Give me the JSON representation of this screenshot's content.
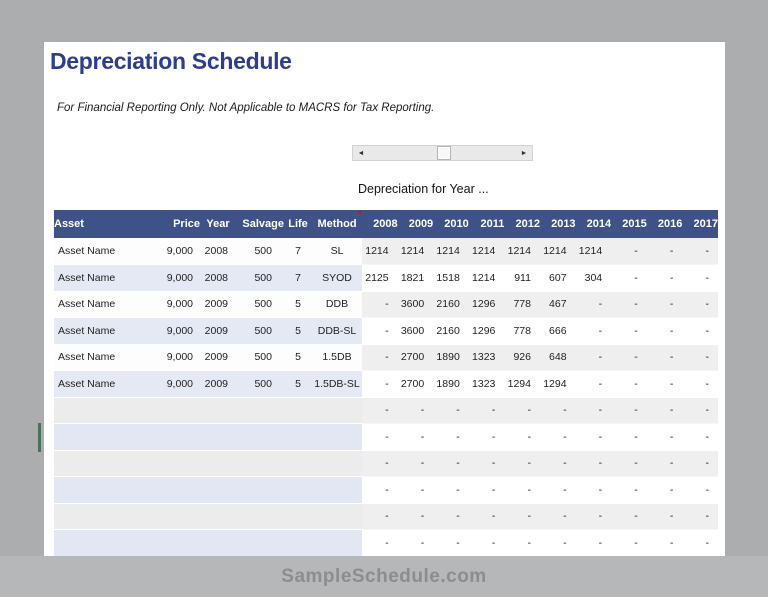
{
  "page": {
    "title": "Depreciation Schedule",
    "subtitle": "For Financial Reporting Only. Not Applicable to MACRS for Tax Reporting.",
    "section_label": "Depreciation for Year ...",
    "watermark": "SampleSchedule.com"
  },
  "scrollbar": {
    "left_arrow": "◄",
    "right_arrow": "►",
    "thumb_left_pct": 46
  },
  "colors": {
    "header_bg": "#3e5288",
    "title_blue": "#2e3d90",
    "row_lavender": "#e4e9f4",
    "row_gray": "#efefef",
    "comment_marker_red": "#cc1111",
    "outer_background": "#acadae",
    "watermark_band": "#b6b7b8"
  },
  "table": {
    "left_headers": [
      "Asset",
      "Price",
      "Year",
      "Salvage",
      "Life",
      "Method"
    ],
    "year_headers": [
      "2008",
      "2009",
      "2010",
      "2011",
      "2012",
      "2013",
      "2014",
      "2015",
      "2016",
      "2017"
    ],
    "comment_marker_column": "Method",
    "rows": [
      {
        "asset": "Asset Name",
        "price": "9,000",
        "year": "2008",
        "salvage": "500",
        "life": "7",
        "method": "SL",
        "values": [
          "1214",
          "1214",
          "1214",
          "1214",
          "1214",
          "1214",
          "1214",
          "-",
          "-",
          "-"
        ]
      },
      {
        "asset": "Asset Name",
        "price": "9,000",
        "year": "2008",
        "salvage": "500",
        "life": "7",
        "method": "SYOD",
        "values": [
          "2125",
          "1821",
          "1518",
          "1214",
          "911",
          "607",
          "304",
          "-",
          "-",
          "-"
        ]
      },
      {
        "asset": "Asset Name",
        "price": "9,000",
        "year": "2009",
        "salvage": "500",
        "life": "5",
        "method": "DDB",
        "values": [
          "-",
          "3600",
          "2160",
          "1296",
          "778",
          "467",
          "-",
          "-",
          "-",
          "-"
        ]
      },
      {
        "asset": "Asset Name",
        "price": "9,000",
        "year": "2009",
        "salvage": "500",
        "life": "5",
        "method": "DDB-SL",
        "values": [
          "-",
          "3600",
          "2160",
          "1296",
          "778",
          "666",
          "-",
          "-",
          "-",
          "-"
        ]
      },
      {
        "asset": "Asset Name",
        "price": "9,000",
        "year": "2009",
        "salvage": "500",
        "life": "5",
        "method": "1.5DB",
        "values": [
          "-",
          "2700",
          "1890",
          "1323",
          "926",
          "648",
          "-",
          "-",
          "-",
          "-"
        ]
      },
      {
        "asset": "Asset Name",
        "price": "9,000",
        "year": "2009",
        "salvage": "500",
        "life": "5",
        "method": "1.5DB-SL",
        "values": [
          "-",
          "2700",
          "1890",
          "1323",
          "1294",
          "1294",
          "-",
          "-",
          "-",
          "-"
        ]
      },
      {
        "asset": "",
        "price": "",
        "year": "",
        "salvage": "",
        "life": "",
        "method": "",
        "values": [
          "-",
          "-",
          "-",
          "-",
          "-",
          "-",
          "-",
          "-",
          "-",
          "-"
        ]
      },
      {
        "asset": "",
        "price": "",
        "year": "",
        "salvage": "",
        "life": "",
        "method": "",
        "values": [
          "-",
          "-",
          "-",
          "-",
          "-",
          "-",
          "-",
          "-",
          "-",
          "-"
        ]
      },
      {
        "asset": "",
        "price": "",
        "year": "",
        "salvage": "",
        "life": "",
        "method": "",
        "values": [
          "-",
          "-",
          "-",
          "-",
          "-",
          "-",
          "-",
          "-",
          "-",
          "-"
        ]
      },
      {
        "asset": "",
        "price": "",
        "year": "",
        "salvage": "",
        "life": "",
        "method": "",
        "values": [
          "-",
          "-",
          "-",
          "-",
          "-",
          "-",
          "-",
          "-",
          "-",
          "-"
        ]
      },
      {
        "asset": "",
        "price": "",
        "year": "",
        "salvage": "",
        "life": "",
        "method": "",
        "values": [
          "-",
          "-",
          "-",
          "-",
          "-",
          "-",
          "-",
          "-",
          "-",
          "-"
        ]
      },
      {
        "asset": "",
        "price": "",
        "year": "",
        "salvage": "",
        "life": "",
        "method": "",
        "values": [
          "-",
          "-",
          "-",
          "-",
          "-",
          "-",
          "-",
          "-",
          "-",
          "-"
        ]
      }
    ]
  }
}
